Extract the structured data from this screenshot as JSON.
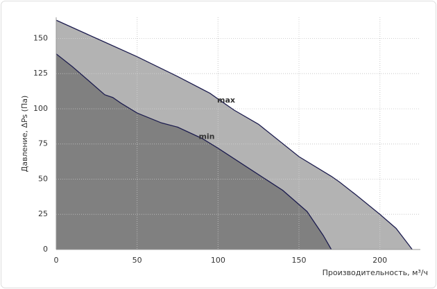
{
  "chart_data": {
    "type": "area",
    "x_label": "Производительность, м³/ч",
    "y_label": "Давление, ΔPs (Па)",
    "xlim": [
      0,
      225
    ],
    "xticks": [
      0,
      50,
      100,
      150,
      200
    ],
    "ylim": [
      0,
      165
    ],
    "yticks": [
      0,
      25,
      50,
      75,
      100,
      125,
      150
    ],
    "grid": true,
    "series": [
      {
        "name": "max",
        "color": "#b3b3b3",
        "line_color": "#1c1c4e",
        "x": [
          0,
          25,
          50,
          75,
          90,
          95,
          100,
          110,
          125,
          150,
          170,
          175,
          185,
          200,
          210,
          218,
          220
        ],
        "values": [
          163,
          150,
          137,
          123,
          114,
          111,
          107,
          99,
          89,
          66,
          52,
          48,
          39,
          25,
          15,
          3,
          0
        ]
      },
      {
        "name": "min",
        "color": "#808080",
        "line_color": "#1c1c4e",
        "x": [
          0,
          10,
          20,
          30,
          35,
          40,
          50,
          65,
          75,
          90,
          100,
          120,
          140,
          155,
          165,
          170
        ],
        "values": [
          139,
          130,
          120,
          110,
          108,
          104,
          97,
          90,
          87,
          79,
          72,
          57,
          42,
          27,
          10,
          0
        ]
      }
    ]
  }
}
